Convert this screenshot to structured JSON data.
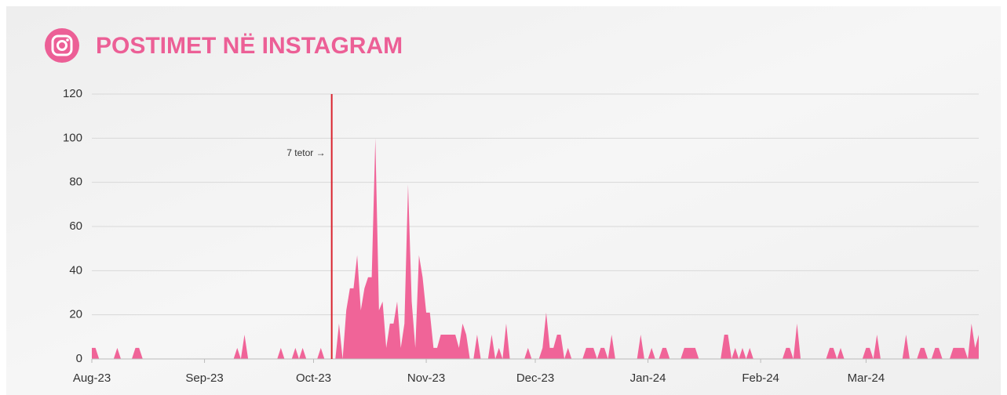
{
  "chart_data": {
    "type": "area",
    "title": "POSTIMET NË INSTAGRAM",
    "color": "#f06498",
    "x": [
      0,
      1,
      2,
      3,
      4,
      5,
      6,
      7,
      8,
      9,
      10,
      11,
      12,
      13,
      14,
      15,
      16,
      17,
      18,
      19,
      20,
      21,
      22,
      23,
      24,
      25,
      26,
      27,
      28,
      29,
      30,
      31,
      32,
      33,
      34,
      35,
      36,
      37,
      38,
      39,
      40,
      41,
      42,
      43,
      44,
      45,
      46,
      47,
      48,
      49,
      50,
      51,
      52,
      53,
      54,
      55,
      56,
      57,
      58,
      59,
      60,
      61,
      62,
      63,
      64,
      65,
      66,
      67,
      68,
      69,
      70,
      71,
      72,
      73,
      74,
      75,
      76,
      77,
      78,
      79,
      80,
      81,
      82,
      83,
      84,
      85,
      86,
      87,
      88,
      89,
      90,
      91,
      92,
      93,
      94,
      95,
      96,
      97,
      98,
      99,
      100,
      101,
      102,
      103,
      104,
      105,
      106,
      107,
      108,
      109,
      110,
      111,
      112,
      113,
      114,
      115,
      116,
      117,
      118,
      119,
      120,
      121,
      122,
      123,
      124,
      125,
      126,
      127,
      128,
      129,
      130,
      131,
      132,
      133,
      134,
      135,
      136,
      137,
      138,
      139,
      140,
      141,
      142,
      143,
      144,
      145,
      146,
      147,
      148,
      149,
      150,
      151,
      152,
      153,
      154,
      155,
      156,
      157,
      158,
      159,
      160,
      161,
      162,
      163,
      164,
      165,
      166,
      167,
      168,
      169,
      170,
      171,
      172,
      173,
      174,
      175,
      176,
      177,
      178,
      179,
      180,
      181,
      182,
      183,
      184,
      185,
      186,
      187,
      188,
      189,
      190,
      191,
      192,
      193,
      194,
      195,
      196,
      197,
      198,
      199,
      200,
      201,
      202,
      203,
      204,
      205,
      206,
      207,
      208,
      209,
      210,
      211,
      212,
      213,
      214,
      215,
      216,
      217,
      218,
      219,
      220,
      221,
      222,
      223,
      224,
      225,
      226,
      227,
      228,
      229,
      230,
      231,
      232,
      233,
      234,
      235,
      236,
      237,
      238,
      239,
      240,
      241,
      242,
      243,
      244
    ],
    "values": [
      5,
      5,
      0,
      0,
      0,
      0,
      0,
      5,
      0,
      0,
      0,
      0,
      5,
      5,
      0,
      0,
      0,
      0,
      0,
      0,
      0,
      0,
      0,
      0,
      0,
      0,
      0,
      0,
      0,
      0,
      0,
      0,
      0,
      0,
      0,
      0,
      0,
      0,
      0,
      0,
      5,
      0,
      11,
      0,
      0,
      0,
      0,
      0,
      0,
      0,
      0,
      0,
      5,
      0,
      0,
      0,
      5,
      0,
      5,
      0,
      0,
      0,
      0,
      5,
      0,
      0,
      0,
      0,
      16,
      0,
      22,
      32,
      32,
      47,
      22,
      32,
      37,
      37,
      100,
      22,
      26,
      5,
      16,
      16,
      26,
      5,
      16,
      79,
      26,
      5,
      47,
      37,
      21,
      21,
      5,
      5,
      11,
      11,
      11,
      11,
      11,
      5,
      16,
      11,
      0,
      0,
      11,
      0,
      0,
      0,
      11,
      0,
      5,
      0,
      16,
      0,
      0,
      0,
      0,
      0,
      5,
      0,
      0,
      0,
      5,
      21,
      5,
      5,
      11,
      11,
      0,
      5,
      0,
      0,
      0,
      0,
      5,
      5,
      5,
      0,
      5,
      5,
      0,
      11,
      0,
      0,
      0,
      0,
      0,
      0,
      0,
      11,
      0,
      0,
      5,
      0,
      0,
      5,
      5,
      0,
      0,
      0,
      0,
      5,
      5,
      5,
      5,
      0,
      0,
      0,
      0,
      0,
      0,
      0,
      11,
      11,
      0,
      5,
      0,
      5,
      0,
      5,
      0,
      0,
      0,
      0,
      0,
      0,
      0,
      0,
      0,
      5,
      5,
      0,
      16,
      0,
      0,
      0,
      0,
      0,
      0,
      0,
      0,
      5,
      5,
      0,
      5,
      0,
      0,
      0,
      0,
      0,
      0,
      5,
      5,
      0,
      11,
      0,
      0,
      0,
      0,
      0,
      0,
      0,
      11,
      0,
      0,
      0,
      5,
      5,
      0,
      0,
      5,
      5,
      0,
      0,
      0,
      5,
      5,
      5,
      5,
      0,
      16,
      5,
      11
    ],
    "xlim": [
      0,
      244
    ],
    "xticks": [
      {
        "value": 0,
        "label": "Aug-23"
      },
      {
        "value": 31,
        "label": "Sep-23"
      },
      {
        "value": 61,
        "label": "Oct-23"
      },
      {
        "value": 92,
        "label": "Nov-23"
      },
      {
        "value": 122,
        "label": "Dec-23"
      },
      {
        "value": 153,
        "label": "Jan-24"
      },
      {
        "value": 184,
        "label": "Feb-24"
      },
      {
        "value": 213,
        "label": "Mar-24"
      }
    ],
    "ylim": [
      0,
      120
    ],
    "yticks": [
      0,
      20,
      40,
      60,
      80,
      100,
      120
    ],
    "grid": true,
    "annotation": {
      "text": "7 tetor →",
      "x": 66,
      "color": "#d9232e"
    }
  }
}
